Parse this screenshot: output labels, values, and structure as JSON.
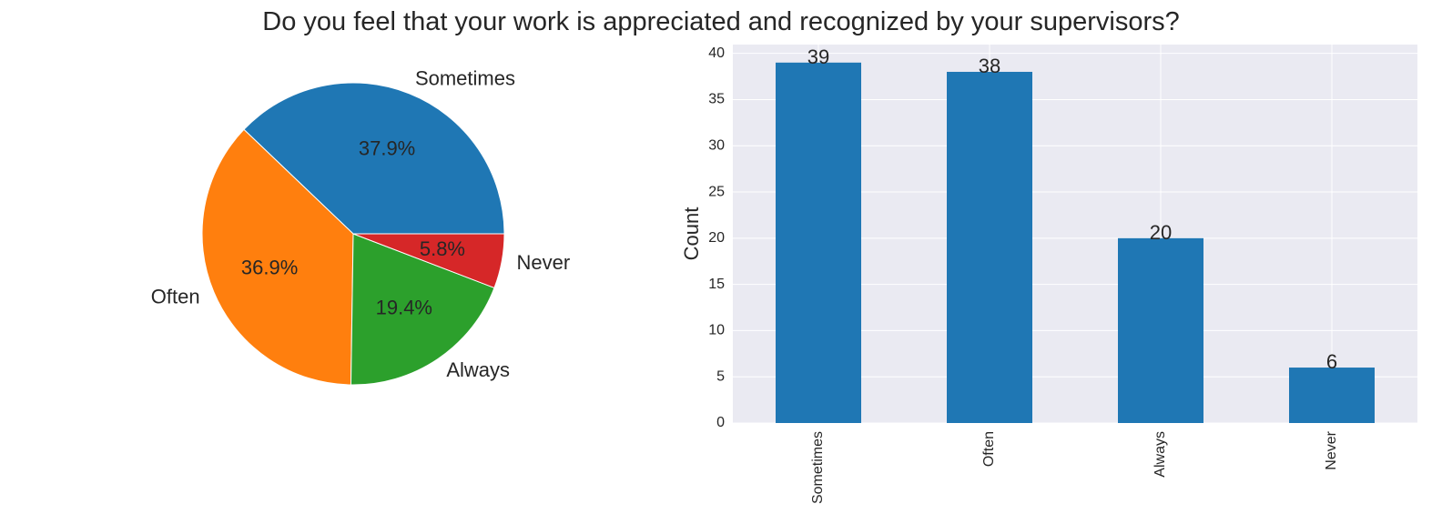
{
  "chart_data": [
    {
      "type": "pie",
      "title": "Do you feel that your work is appreciated and recognized by your supervisors?",
      "labels": [
        "Sometimes",
        "Often",
        "Always",
        "Never"
      ],
      "values": [
        39,
        38,
        20,
        6
      ],
      "percent_labels": [
        "37.9%",
        "36.9%",
        "19.4%",
        "5.8%"
      ],
      "colors": [
        "#1f77b4",
        "#ff7f0e",
        "#2ca02c",
        "#d62728"
      ],
      "start_angle_deg": 0,
      "direction": "counterclockwise"
    },
    {
      "type": "bar",
      "categories": [
        "Sometimes",
        "Often",
        "Always",
        "Never"
      ],
      "values": [
        39,
        38,
        20,
        6
      ],
      "value_labels": [
        "39",
        "38",
        "20",
        "6"
      ],
      "xlabel": "",
      "ylabel": "Count",
      "ylim": [
        0,
        40.95
      ],
      "yticks": [
        0,
        5,
        10,
        15,
        20,
        25,
        30,
        35,
        40
      ],
      "ytick_labels": [
        "0",
        "5",
        "10",
        "15",
        "20",
        "25",
        "30",
        "35",
        "40"
      ],
      "grid": true,
      "bar_color": "#1f77b4",
      "background": "#eaeaf2"
    }
  ]
}
